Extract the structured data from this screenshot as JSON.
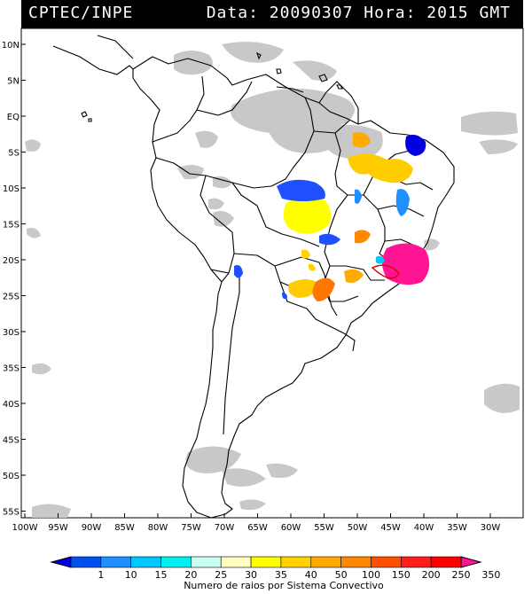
{
  "header": {
    "left": "CPTEC/INPE",
    "right": "Data: 20090307 Hora: 2015 GMT"
  },
  "lat_labels": [
    "10N",
    "5N",
    "EQ",
    "5S",
    "10S",
    "15S",
    "20S",
    "25S",
    "30S",
    "35S",
    "40S",
    "45S",
    "50S",
    "55S"
  ],
  "lon_labels": [
    "100W",
    "95W",
    "90W",
    "85W",
    "80W",
    "75W",
    "70W",
    "65W",
    "60W",
    "55W",
    "50W",
    "45W",
    "40W",
    "35W",
    "30W"
  ],
  "colorbar": {
    "labels": [
      "1",
      "10",
      "15",
      "20",
      "25",
      "30",
      "35",
      "40",
      "50",
      "100",
      "150",
      "200",
      "250",
      "350"
    ],
    "colors": [
      "#0000e0",
      "#0050f0",
      "#1e90ff",
      "#00c8ff",
      "#00f0f0",
      "#c8fff0",
      "#ffffc0",
      "#ffff00",
      "#ffd200",
      "#ffaa00",
      "#ff8800",
      "#ff5000",
      "#ff1e1e",
      "#ff0000",
      "#ff1493"
    ],
    "caption": "Numero de raios por Sistema Convectivo"
  },
  "colors": {
    "land_outline": "#000000",
    "cloud_gray": "#c4c4c4",
    "header_bg": "#000000"
  }
}
